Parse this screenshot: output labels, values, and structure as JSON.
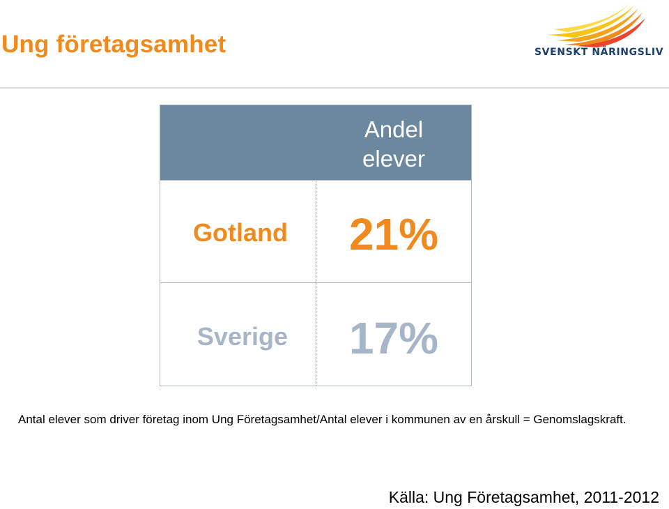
{
  "title": "Ung företagsamhet",
  "logo": {
    "text": "SVENSKT NÄRINGSLIV",
    "icon": "flame-wings-logo-icon",
    "colors": [
      "#f7c51a",
      "#f08a1c",
      "#e8452b"
    ]
  },
  "table": {
    "header": {
      "line1": "Andel",
      "line2": "elever"
    },
    "rows": [
      {
        "label": "Gotland",
        "value": "21%"
      },
      {
        "label": "Sverige",
        "value": "17%"
      }
    ]
  },
  "note": "Antal elever som driver företag inom Ung Företagsamhet/Antal elever i kommunen av en årskull = Genomslagskraft.",
  "source": "Källa: Ung Företagsamhet, 2011-2012",
  "colors": {
    "accent": "#f08a1c",
    "header_bg": "#6c889f",
    "muted": "#a6b5c7",
    "brand_navy": "#1c3f6e"
  }
}
